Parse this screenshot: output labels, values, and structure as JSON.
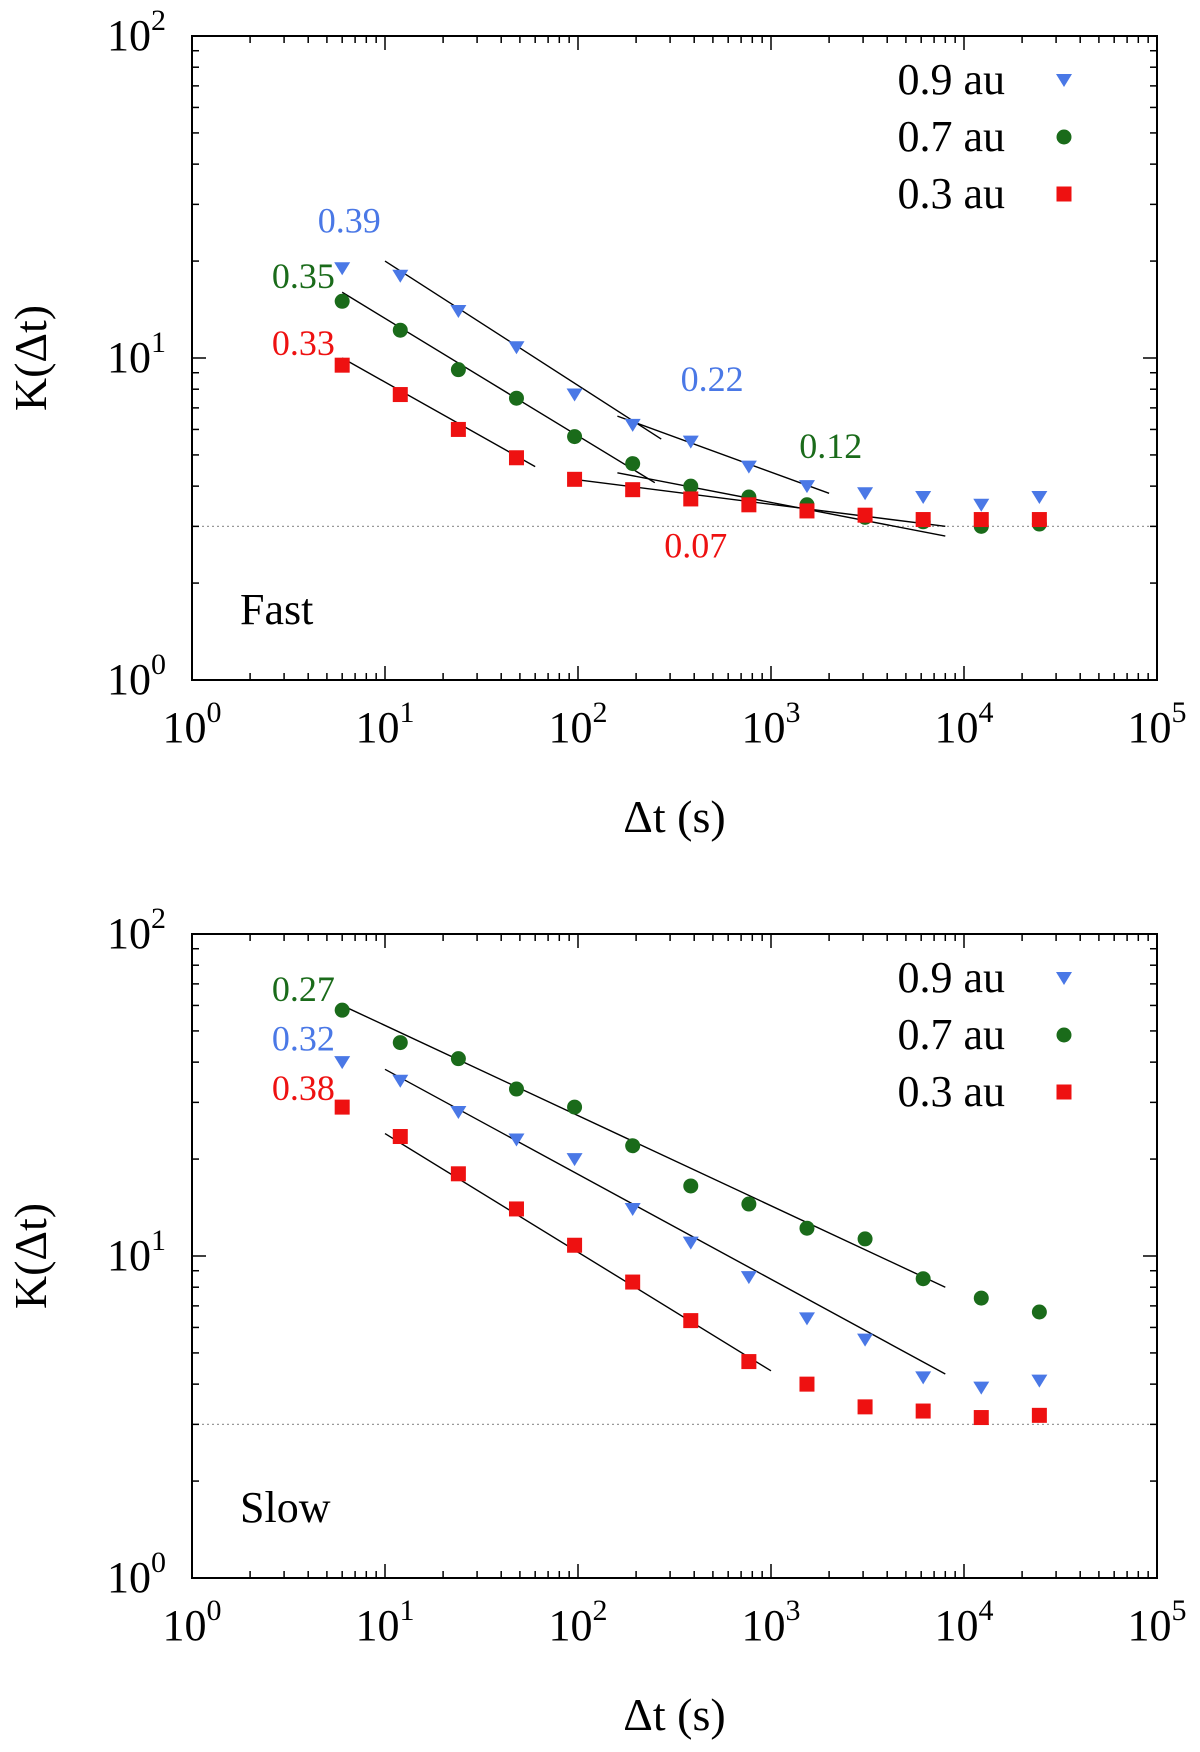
{
  "chart_data": [
    {
      "type": "scatter",
      "panel_label": "Fast",
      "xlabel": "Δt (s)",
      "ylabel": "K(Δt)",
      "xscale": "log",
      "yscale": "log",
      "xlim": [
        1,
        100000
      ],
      "ylim": [
        1,
        100
      ],
      "x_ticks": [
        {
          "value": 1,
          "base": "10",
          "exp": "0"
        },
        {
          "value": 10,
          "base": "10",
          "exp": "1"
        },
        {
          "value": 100,
          "base": "10",
          "exp": "2"
        },
        {
          "value": 1000,
          "base": "10",
          "exp": "3"
        },
        {
          "value": 10000,
          "base": "10",
          "exp": "4"
        },
        {
          "value": 100000,
          "base": "10",
          "exp": "5"
        }
      ],
      "y_ticks": [
        {
          "value": 1,
          "base": "10",
          "exp": "0"
        },
        {
          "value": 10,
          "base": "10",
          "exp": "1"
        },
        {
          "value": 100,
          "base": "10",
          "exp": "2"
        }
      ],
      "reference_line": 3,
      "legend_position": "top-right",
      "series": [
        {
          "name": "0.9 au",
          "marker": "triangle-down",
          "color": "#4a78e6",
          "x": [
            6,
            12,
            24,
            48,
            96,
            192,
            384,
            768,
            1536,
            3072,
            6144,
            12288,
            24576
          ],
          "y": [
            19,
            18,
            14,
            10.8,
            7.7,
            6.2,
            5.5,
            4.6,
            4.0,
            3.8,
            3.7,
            3.5,
            3.7
          ]
        },
        {
          "name": "0.7 au",
          "marker": "circle",
          "color": "#1a6b1a",
          "x": [
            6,
            12,
            24,
            48,
            96,
            192,
            384,
            768,
            1536,
            3072,
            6144,
            12288,
            24576
          ],
          "y": [
            15,
            12.2,
            9.2,
            7.5,
            5.7,
            4.7,
            4.0,
            3.7,
            3.5,
            3.2,
            3.1,
            3.0,
            3.05
          ]
        },
        {
          "name": "0.3 au",
          "marker": "square",
          "color": "#ee1111",
          "x": [
            6,
            12,
            24,
            48,
            96,
            192,
            384,
            768,
            1536,
            3072,
            6144,
            12288,
            24576
          ],
          "y": [
            9.5,
            7.7,
            6.0,
            4.9,
            4.2,
            3.9,
            3.65,
            3.5,
            3.35,
            3.25,
            3.15,
            3.15,
            3.15
          ]
        }
      ],
      "fits": [
        {
          "x": [
            10,
            270
          ],
          "y": [
            20,
            5.6
          ]
        },
        {
          "x": [
            160,
            2000
          ],
          "y": [
            6.6,
            3.8
          ]
        },
        {
          "x": [
            6,
            250
          ],
          "y": [
            16,
            4.1
          ]
        },
        {
          "x": [
            160,
            8000
          ],
          "y": [
            4.4,
            2.8
          ]
        },
        {
          "x": [
            6,
            60
          ],
          "y": [
            10,
            4.6
          ]
        },
        {
          "x": [
            95,
            8000
          ],
          "y": [
            4.2,
            3.0
          ]
        }
      ],
      "annotations": [
        {
          "text": "0.39",
          "color": "#4a78e6",
          "x": 9.5,
          "y": 24.5,
          "anchor": "end"
        },
        {
          "text": "0.35",
          "color": "#1a6b1a",
          "x": 5.5,
          "y": 16.5,
          "anchor": "end"
        },
        {
          "text": "0.33",
          "color": "#ee1111",
          "x": 5.5,
          "y": 10.2,
          "anchor": "end"
        },
        {
          "text": "0.22",
          "color": "#4a78e6",
          "x": 340,
          "y": 7.9,
          "anchor": "start"
        },
        {
          "text": "0.12",
          "color": "#1a6b1a",
          "x": 1400,
          "y": 4.9,
          "anchor": "start"
        },
        {
          "text": "0.07",
          "color": "#ee1111",
          "x": 280,
          "y": 2.4,
          "anchor": "start"
        }
      ]
    },
    {
      "type": "scatter",
      "panel_label": "Slow",
      "xlabel": "Δt (s)",
      "ylabel": "K(Δt)",
      "xscale": "log",
      "yscale": "log",
      "xlim": [
        1,
        100000
      ],
      "ylim": [
        1,
        100
      ],
      "x_ticks": [
        {
          "value": 1,
          "base": "10",
          "exp": "0"
        },
        {
          "value": 10,
          "base": "10",
          "exp": "1"
        },
        {
          "value": 100,
          "base": "10",
          "exp": "2"
        },
        {
          "value": 1000,
          "base": "10",
          "exp": "3"
        },
        {
          "value": 10000,
          "base": "10",
          "exp": "4"
        },
        {
          "value": 100000,
          "base": "10",
          "exp": "5"
        }
      ],
      "y_ticks": [
        {
          "value": 1,
          "base": "10",
          "exp": "0"
        },
        {
          "value": 10,
          "base": "10",
          "exp": "1"
        },
        {
          "value": 100,
          "base": "10",
          "exp": "2"
        }
      ],
      "reference_line": 3,
      "legend_position": "top-right",
      "series": [
        {
          "name": "0.9 au",
          "marker": "triangle-down",
          "color": "#4a78e6",
          "x": [
            6,
            12,
            24,
            48,
            96,
            192,
            384,
            768,
            1536,
            3072,
            6144,
            12288,
            24576
          ],
          "y": [
            40,
            35,
            28,
            23,
            20,
            14,
            11,
            8.6,
            6.4,
            5.5,
            4.2,
            3.9,
            4.1
          ]
        },
        {
          "name": "0.7 au",
          "marker": "circle",
          "color": "#1a6b1a",
          "x": [
            6,
            12,
            24,
            48,
            96,
            192,
            384,
            768,
            1536,
            3072,
            6144,
            12288,
            24576
          ],
          "y": [
            58,
            46,
            41,
            33,
            29,
            22,
            16.5,
            14.5,
            12.2,
            11.3,
            8.5,
            7.4,
            6.7
          ]
        },
        {
          "name": "0.3 au",
          "marker": "square",
          "color": "#ee1111",
          "x": [
            6,
            12,
            24,
            48,
            96,
            192,
            384,
            768,
            1536,
            3072,
            6144,
            12288,
            24576
          ],
          "y": [
            29,
            23.5,
            18,
            14,
            10.8,
            8.3,
            6.3,
            4.7,
            4.0,
            3.4,
            3.3,
            3.15,
            3.2
          ]
        }
      ],
      "fits": [
        {
          "x": [
            6,
            8000
          ],
          "y": [
            60,
            8.0
          ]
        },
        {
          "x": [
            10,
            8000
          ],
          "y": [
            38,
            4.3
          ]
        },
        {
          "x": [
            10,
            1000
          ],
          "y": [
            24,
            4.4
          ]
        }
      ],
      "annotations": [
        {
          "text": "0.27",
          "color": "#1a6b1a",
          "x": 5.5,
          "y": 62,
          "anchor": "end"
        },
        {
          "text": "0.32",
          "color": "#4a78e6",
          "x": 5.5,
          "y": 43.5,
          "anchor": "end"
        },
        {
          "text": "0.38",
          "color": "#ee1111",
          "x": 5.5,
          "y": 30.5,
          "anchor": "end"
        }
      ]
    }
  ]
}
